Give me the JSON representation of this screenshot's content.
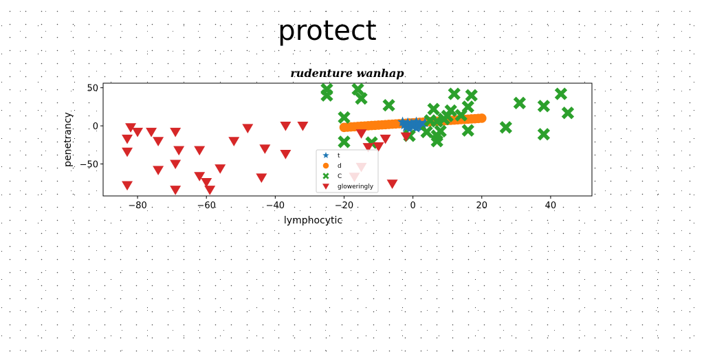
{
  "page_title": "protect",
  "chart_data": {
    "type": "scatter",
    "title": "rudenture wanhap",
    "xlabel": "lymphocytic",
    "ylabel": "penetrancy",
    "xlim": [
      -90,
      52
    ],
    "ylim": [
      -92,
      56
    ],
    "xticks": [
      -80,
      -60,
      -40,
      -20,
      0,
      20,
      40
    ],
    "yticks": [
      50,
      0,
      -50
    ],
    "legend_position": "lower-center",
    "series": [
      {
        "name": "t",
        "marker": "star",
        "color": "#1f77b4",
        "points": [
          [
            -3,
            5
          ],
          [
            -2.5,
            1
          ],
          [
            -2,
            -2
          ],
          [
            -1.5,
            4
          ],
          [
            -1,
            0
          ],
          [
            -0.5,
            3
          ],
          [
            0,
            -1
          ],
          [
            0.5,
            2
          ],
          [
            1,
            -3
          ],
          [
            1.5,
            1
          ],
          [
            2,
            3
          ],
          [
            2.5,
            -2
          ],
          [
            3,
            0
          ],
          [
            3.5,
            4
          ],
          [
            1,
            5
          ],
          [
            -1,
            -4
          ],
          [
            0,
            2
          ],
          [
            2,
            -1
          ]
        ]
      },
      {
        "name": "d",
        "marker": "circle",
        "color": "#ff7f0e",
        "points": [
          [
            -20,
            -2
          ],
          [
            -19,
            -1.7
          ],
          [
            -18,
            -1.4
          ],
          [
            -17,
            -1.1
          ],
          [
            -16,
            -0.8
          ],
          [
            -15,
            -0.5
          ],
          [
            -14,
            -0.2
          ],
          [
            -13,
            0.1
          ],
          [
            -12,
            0.4
          ],
          [
            -11,
            0.7
          ],
          [
            -10,
            1
          ],
          [
            -9,
            1.3
          ],
          [
            -8,
            1.6
          ],
          [
            -7,
            1.9
          ],
          [
            -6,
            2.2
          ],
          [
            -5,
            2.5
          ],
          [
            -4,
            2.8
          ],
          [
            -3,
            3.1
          ],
          [
            -2,
            3.4
          ],
          [
            -1,
            3.7
          ],
          [
            0,
            4
          ],
          [
            1,
            4.3
          ],
          [
            2,
            4.6
          ],
          [
            3,
            4.9
          ],
          [
            4,
            5.2
          ],
          [
            5,
            5.5
          ],
          [
            6,
            5.8
          ],
          [
            7,
            6.1
          ],
          [
            8,
            6.4
          ],
          [
            9,
            6.7
          ],
          [
            10,
            7
          ],
          [
            11,
            7.3
          ],
          [
            12,
            7.6
          ],
          [
            13,
            7.9
          ],
          [
            14,
            8.2
          ],
          [
            15,
            8.5
          ],
          [
            16,
            8.8
          ],
          [
            17,
            9.1
          ],
          [
            18,
            9.4
          ],
          [
            19,
            9.7
          ],
          [
            20,
            10
          ]
        ]
      },
      {
        "name": "C",
        "marker": "x",
        "color": "#2ca02c",
        "points": [
          [
            -25,
            48
          ],
          [
            -25,
            40
          ],
          [
            -16,
            48
          ],
          [
            -15,
            36
          ],
          [
            -7,
            27
          ],
          [
            -20,
            11
          ],
          [
            -20,
            -21
          ],
          [
            -12,
            -22
          ],
          [
            -1,
            -13
          ],
          [
            4,
            -8
          ],
          [
            6,
            22
          ],
          [
            7,
            6
          ],
          [
            7,
            -13
          ],
          [
            7,
            -20
          ],
          [
            9,
            9
          ],
          [
            10,
            13
          ],
          [
            11,
            20
          ],
          [
            12,
            42
          ],
          [
            16,
            25
          ],
          [
            16,
            -6
          ],
          [
            17,
            40
          ],
          [
            27,
            -2
          ],
          [
            31,
            30
          ],
          [
            38,
            26
          ],
          [
            38,
            -11
          ],
          [
            43,
            42
          ],
          [
            45,
            17
          ],
          [
            5,
            7
          ],
          [
            8,
            -7
          ],
          [
            14,
            14
          ]
        ]
      },
      {
        "name": "gloweringly",
        "marker": "triangle_down",
        "color": "#d62728",
        "points": [
          [
            -83,
            -78
          ],
          [
            -83,
            -34
          ],
          [
            -83,
            -17
          ],
          [
            -82,
            -2
          ],
          [
            -80,
            -8
          ],
          [
            -76,
            -8
          ],
          [
            -74,
            -20
          ],
          [
            -74,
            -58
          ],
          [
            -69,
            -8
          ],
          [
            -69,
            -50
          ],
          [
            -69,
            -84
          ],
          [
            -68,
            -32
          ],
          [
            -62,
            -32
          ],
          [
            -62,
            -66
          ],
          [
            -60,
            -74
          ],
          [
            -59,
            -84
          ],
          [
            -56,
            -56
          ],
          [
            -52,
            -20
          ],
          [
            -48,
            -3
          ],
          [
            -44,
            -68
          ],
          [
            -43,
            -30
          ],
          [
            -37,
            0
          ],
          [
            -37,
            -37
          ],
          [
            -32,
            0
          ],
          [
            -17,
            -67
          ],
          [
            -15,
            -54
          ],
          [
            -15,
            -10
          ],
          [
            -13,
            -28
          ],
          [
            -10,
            -27
          ],
          [
            -8,
            -17
          ],
          [
            -6,
            -76
          ],
          [
            -2,
            -14
          ]
        ]
      }
    ]
  }
}
